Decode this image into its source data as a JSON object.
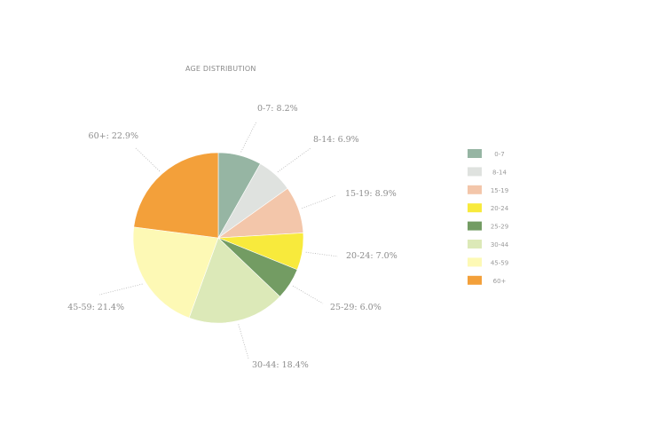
{
  "chart_data": {
    "type": "pie",
    "title": "AGE DISTRIBUTION",
    "slices": [
      {
        "category": "0-7",
        "value": 8.2,
        "label": "0-7: 8.2%",
        "color": "#96b5a3"
      },
      {
        "category": "8-14",
        "value": 6.9,
        "label": "8-14: 6.9%",
        "color": "#dfe2df"
      },
      {
        "category": "15-19",
        "value": 8.9,
        "label": "15-19: 8.9%",
        "color": "#f3c6aa"
      },
      {
        "category": "20-24",
        "value": 7.0,
        "label": "20-24: 7.0%",
        "color": "#f8ea3c"
      },
      {
        "category": "25-29",
        "value": 6.0,
        "label": "25-29: 6.0%",
        "color": "#739c63"
      },
      {
        "category": "30-44",
        "value": 18.4,
        "label": "30-44: 18.4%",
        "color": "#dce9b8"
      },
      {
        "category": "45-59",
        "value": 21.4,
        "label": "45-59: 21.4%",
        "color": "#fdf9b5"
      },
      {
        "category": "60+",
        "value": 22.9,
        "label": "60+: 22.9%",
        "color": "#f3a03a"
      }
    ],
    "legend": {
      "placement": "right",
      "entries": [
        "0-7",
        "8-14",
        "15-19",
        "20-24",
        "25-29",
        "30-44",
        "45-59",
        "60+"
      ]
    }
  }
}
